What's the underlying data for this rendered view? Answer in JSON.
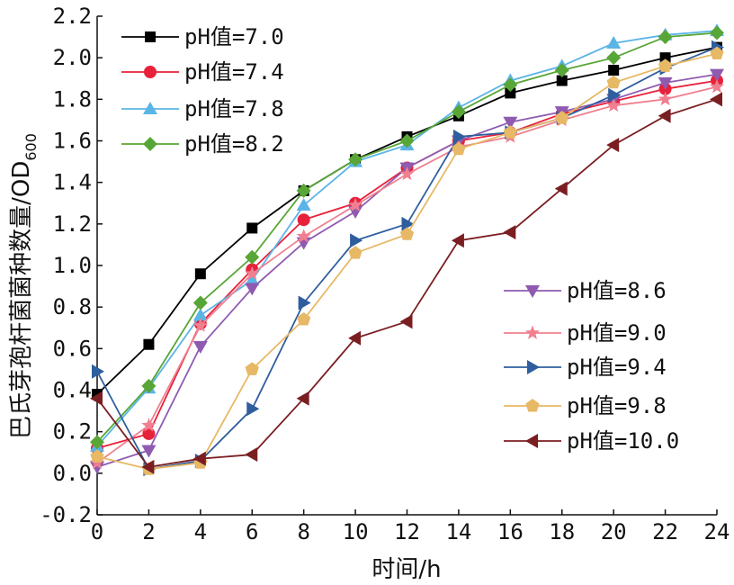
{
  "chart_data": {
    "type": "line",
    "xlabel": "时间/h",
    "ylabel_main": "巴氏芽孢杆菌菌种数量/OD",
    "ylabel_sub": "600",
    "xlim": [
      0,
      24
    ],
    "ylim": [
      -0.2,
      2.2
    ],
    "x_ticks": [
      "0",
      "2",
      "4",
      "6",
      "8",
      "10",
      "12",
      "14",
      "16",
      "18",
      "20",
      "22",
      "24"
    ],
    "y_ticks": [
      "-0.2",
      "0.0",
      "0.2",
      "0.4",
      "0.6",
      "0.8",
      "1.0",
      "1.2",
      "1.4",
      "1.6",
      "1.8",
      "2.0",
      "2.2"
    ],
    "grid": false,
    "x": [
      0,
      2,
      4,
      6,
      8,
      10,
      12,
      14,
      16,
      18,
      20,
      22,
      24
    ],
    "series": [
      {
        "name": "pH值=7.0",
        "color": "#000000",
        "marker": "square",
        "values": [
          0.38,
          0.62,
          0.96,
          1.18,
          1.36,
          1.51,
          1.62,
          1.72,
          1.83,
          1.89,
          1.94,
          2.0,
          2.05
        ]
      },
      {
        "name": "pH值=7.4",
        "color": "#e8213b",
        "marker": "circle",
        "values": [
          0.12,
          0.19,
          0.72,
          0.98,
          1.22,
          1.3,
          1.47,
          1.6,
          1.64,
          1.73,
          1.79,
          1.85,
          1.89
        ]
      },
      {
        "name": "pH值=7.8",
        "color": "#5bb4e6",
        "marker": "triangle-up",
        "values": [
          0.13,
          0.41,
          0.76,
          0.93,
          1.29,
          1.5,
          1.58,
          1.76,
          1.89,
          1.96,
          2.07,
          2.11,
          2.13
        ]
      },
      {
        "name": "pH值=8.2",
        "color": "#58a636",
        "marker": "diamond",
        "values": [
          0.15,
          0.42,
          0.82,
          1.04,
          1.36,
          1.51,
          1.6,
          1.74,
          1.87,
          1.94,
          2.0,
          2.1,
          2.12
        ]
      },
      {
        "name": "pH值=8.6",
        "color": "#8f5bb0",
        "marker": "triangle-down",
        "values": [
          0.03,
          0.11,
          0.61,
          0.89,
          1.11,
          1.26,
          1.47,
          1.6,
          1.69,
          1.74,
          1.8,
          1.88,
          1.92
        ]
      },
      {
        "name": "pH值=9.0",
        "color": "#f07f8f",
        "marker": "star",
        "values": [
          0.05,
          0.23,
          0.71,
          0.96,
          1.14,
          1.29,
          1.44,
          1.57,
          1.62,
          1.7,
          1.77,
          1.8,
          1.86
        ]
      },
      {
        "name": "pH值=9.4",
        "color": "#2f5e9e",
        "marker": "triangle-right",
        "values": [
          0.49,
          0.02,
          0.06,
          0.31,
          0.82,
          1.12,
          1.2,
          1.62,
          1.64,
          1.71,
          1.82,
          1.95,
          2.05
        ]
      },
      {
        "name": "pH值=9.8",
        "color": "#e7b865",
        "marker": "pentagon",
        "values": [
          0.08,
          0.02,
          0.05,
          0.5,
          0.74,
          1.06,
          1.15,
          1.56,
          1.64,
          1.71,
          1.88,
          1.96,
          2.02
        ]
      },
      {
        "name": "pH值=10.0",
        "color": "#7a1e22",
        "marker": "triangle-left",
        "values": [
          0.36,
          0.03,
          0.07,
          0.09,
          0.36,
          0.65,
          0.73,
          1.12,
          1.16,
          1.37,
          1.58,
          1.72,
          1.8
        ]
      }
    ],
    "legend": [
      "top-left",
      "bottom-right"
    ]
  }
}
